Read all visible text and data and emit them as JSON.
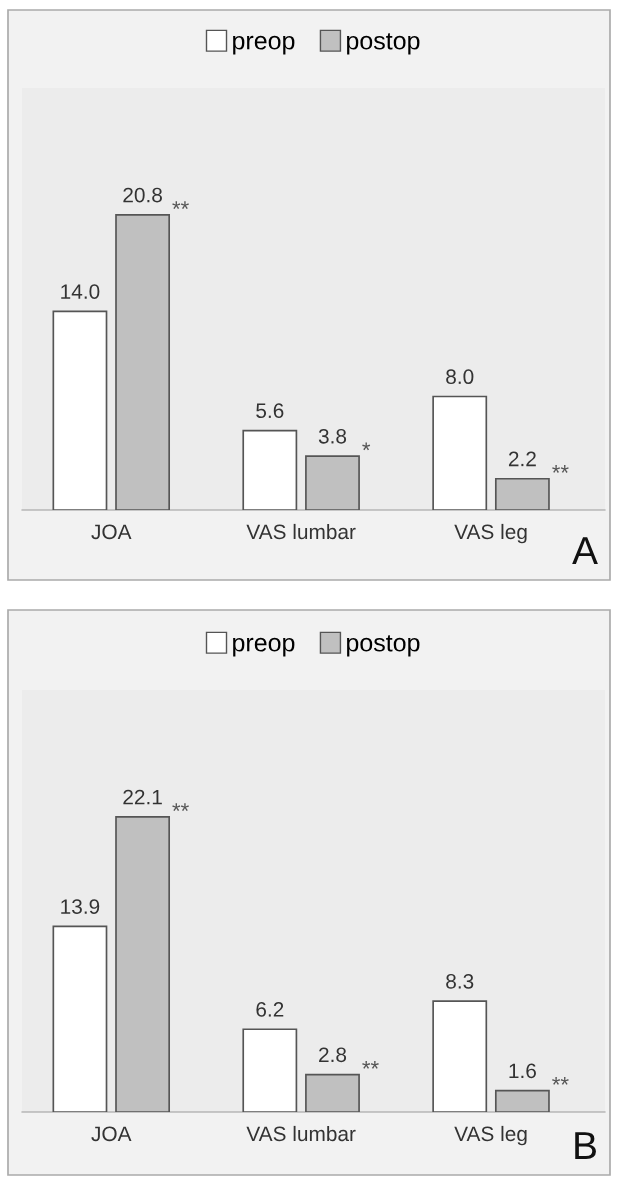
{
  "chart_data": [
    {
      "type": "bar",
      "categories": [
        "JOA",
        "VAS lumbar",
        "VAS leg"
      ],
      "series": [
        {
          "name": "preop",
          "color": "#ffffff",
          "values": [
            14.0,
            5.6,
            8.0
          ],
          "value_labels": [
            "14.0",
            "5.6",
            "8.0"
          ]
        },
        {
          "name": "postop",
          "color": "#c0c0c0",
          "values": [
            20.8,
            3.8,
            2.2
          ],
          "value_labels": [
            "20.8",
            "3.8",
            "2.2"
          ]
        }
      ],
      "legend": "top",
      "annotations": [
        {
          "text": "**",
          "x": "JOA",
          "y": 20.8
        },
        {
          "text": "*",
          "x": "VAS lumbar",
          "y": 3.8
        },
        {
          "text": "**",
          "x": "VAS leg",
          "y": 2.2
        },
        "A"
      ]
    },
    {
      "type": "bar",
      "categories": [
        "JOA",
        "VAS lumbar",
        "VAS leg"
      ],
      "series": [
        {
          "name": "preop",
          "color": "#ffffff",
          "values": [
            13.9,
            6.2,
            8.3
          ],
          "value_labels": [
            "13.9",
            "6.2",
            "8.3"
          ]
        },
        {
          "name": "postop",
          "color": "#c0c0c0",
          "values": [
            22.1,
            2.8,
            1.6
          ],
          "value_labels": [
            "22.1",
            "2.8",
            "1.6"
          ]
        }
      ],
      "legend": "top",
      "annotations": [
        {
          "text": "**",
          "x": "JOA",
          "y": 22.1
        },
        {
          "text": "**",
          "x": "VAS lumbar",
          "y": 2.8
        },
        {
          "text": "**",
          "x": "VAS leg",
          "y": 1.6
        },
        "B"
      ]
    }
  ]
}
